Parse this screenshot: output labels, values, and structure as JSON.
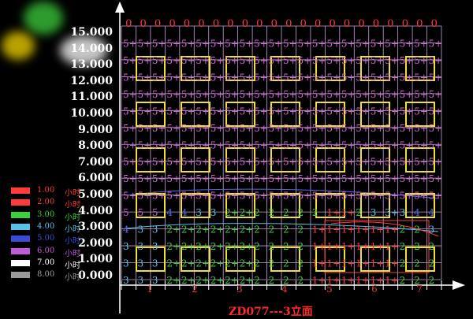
{
  "title": "ZD077---3立面",
  "legend": [
    {
      "value": "1.00",
      "unit": "小时",
      "color": "#ff3b3b"
    },
    {
      "value": "2.00",
      "unit": "小时",
      "color": "#ff3b3b"
    },
    {
      "value": "3.00",
      "unit": "小时",
      "color": "#3bd13b"
    },
    {
      "value": "4.00",
      "unit": "小时",
      "color": "#5bc0e8"
    },
    {
      "value": "5.00",
      "unit": "小时",
      "color": "#3a4bd8"
    },
    {
      "value": "6.00",
      "unit": "小时",
      "color": "#c05ad8"
    },
    {
      "value": "7.00",
      "unit": "小时",
      "color": "#ffffff"
    },
    {
      "value": "8.00",
      "unit": "小时",
      "color": "#9a9a9a"
    }
  ],
  "y_labels": [
    "15.000",
    "14.000",
    "13.000",
    "12.000",
    "11.000",
    "10.000",
    "9.000",
    "8.000",
    "7.000",
    "6.000",
    "5.000",
    "4.000",
    "3.000",
    "2.000",
    "1.000",
    "0.000"
  ],
  "column_numbers": [
    "1",
    "2",
    "3",
    "4",
    "5",
    "6",
    "7"
  ],
  "grid": {
    "cols": 22,
    "rows": [
      {
        "kind": "zero",
        "cells": "0000000000000000000000"
      },
      {
        "kind": "row",
        "cells": [
          "5+",
          "5+",
          "5+",
          "5+",
          "5+",
          "5+",
          "5+",
          "5+",
          "5+",
          "5+",
          "5+",
          "5+",
          "5+",
          "5+",
          "5+",
          "5+",
          "5+",
          "5+",
          "5+",
          "5+",
          "5+",
          "5+"
        ]
      },
      {
        "kind": "row",
        "cells": [
          "5+",
          "5+",
          "5+",
          "5+",
          "5+",
          "5+",
          "5+",
          "5+",
          "5+",
          "5+",
          "5+",
          "5+",
          "5+",
          "5+",
          "5+",
          "5+",
          "5+",
          "5+",
          "5+",
          "5+",
          "5+",
          "5+"
        ]
      },
      {
        "kind": "row",
        "cells": [
          "5+",
          "5+",
          "5+",
          "5+",
          "5+",
          "5+",
          "5+",
          "5+",
          "5+",
          "5+",
          "5+",
          "5+",
          "5+",
          "5+",
          "5+",
          "5+",
          "5+",
          "5+",
          "5+",
          "5+",
          "5+",
          "5+"
        ]
      },
      {
        "kind": "row",
        "cells": [
          "5+",
          "5+",
          "5+",
          "5+",
          "5+",
          "5+",
          "5+",
          "5+",
          "5+",
          "5+",
          "5+",
          "5+",
          "5+",
          "5+",
          "5+",
          "5+",
          "5+",
          "5+",
          "5+",
          "5+",
          "5+",
          "5+"
        ]
      },
      {
        "kind": "row",
        "cells": [
          "5+",
          "5+",
          "5+",
          "5+",
          "5+",
          "5+",
          "5+",
          "5+",
          "5+",
          "5+",
          "5+",
          "5+",
          "5+",
          "5+",
          "5+",
          "5+",
          "5+",
          "5+",
          "5+",
          "5+",
          "5+",
          "5+"
        ]
      },
      {
        "kind": "row",
        "cells": [
          "5+",
          "5+",
          "5+",
          "5+",
          "5+",
          "5+",
          "5+",
          "5+",
          "5+",
          "5+",
          "5+",
          "5+",
          "5+",
          "5+",
          "5+",
          "5+",
          "5+",
          "5+",
          "5+",
          "5+",
          "5+",
          "5+"
        ]
      },
      {
        "kind": "row",
        "cells": [
          "5+",
          "5+",
          "5+",
          "5+",
          "5+",
          "5+",
          "5+",
          "5+",
          "5+",
          "5+",
          "5+",
          "5+",
          "5+",
          "5+",
          "5+",
          "5+",
          "5+",
          "5+",
          "5+",
          "5+",
          "5+",
          "5+"
        ]
      },
      {
        "kind": "row",
        "cells": [
          "5+",
          "5+",
          "5+",
          "5+",
          "5+",
          "5+",
          "5+",
          "5+",
          "5+",
          "5+",
          "5+",
          "5+",
          "5+",
          "5+",
          "5+",
          "5+",
          "5+",
          "5+",
          "5+",
          "5+",
          "5+",
          "5+"
        ]
      },
      {
        "kind": "row",
        "cells": [
          "5+",
          "5+",
          "5+",
          "5+",
          "5+",
          "5+",
          "5+",
          "5+",
          "5+",
          "5+",
          "5+",
          "5+",
          "5+",
          "5+",
          "5+",
          "5+",
          "5+",
          "5+",
          "5+",
          "5+",
          "5+",
          "5+"
        ]
      },
      {
        "kind": "row",
        "cells": [
          "5+",
          "5+",
          "5+",
          "5+",
          "5+",
          "5+",
          "5+",
          "5+",
          "5+",
          "5+",
          "5+",
          "5+",
          "5+",
          "5+",
          "5+",
          "5+",
          "5+",
          "5+",
          "5+",
          "5+",
          "5+",
          "5+"
        ]
      },
      {
        "kind": "row",
        "cells": [
          "5",
          "5",
          "5",
          "4",
          "4",
          "3",
          "3",
          "2+",
          "2+",
          "2",
          "2",
          "2",
          "2",
          "2",
          "1+",
          "1+",
          "2",
          "3",
          "3+",
          "3",
          "4",
          "4"
        ]
      },
      {
        "kind": "row",
        "cells": [
          "4",
          "3",
          "3",
          "2+",
          "2+",
          "2+",
          "2+",
          "2+",
          "2+",
          "2",
          "2",
          "2",
          "2",
          "1+",
          "1+",
          "1+",
          "1+",
          "1+",
          "1+",
          "2",
          "2",
          "3"
        ]
      },
      {
        "kind": "row",
        "cells": [
          "3",
          "3",
          "3",
          "2+",
          "2+",
          "2+",
          "2+",
          "2+",
          "2+",
          "2",
          "2",
          "2",
          "2",
          "1+",
          "1+",
          "1+",
          "1+",
          "1+",
          "1+",
          "2",
          "2",
          "2"
        ]
      },
      {
        "kind": "row",
        "cells": [
          "3",
          "3",
          "3",
          "2+",
          "2+",
          "2+",
          "2+",
          "2+",
          "2+",
          "2",
          "2",
          "2",
          "2",
          "1+",
          "1+",
          "1+",
          "1+",
          "1+",
          "1+",
          "2",
          "2",
          "2"
        ]
      },
      {
        "kind": "row",
        "cells": [
          "3",
          "3",
          "3",
          "2+",
          "2+",
          "2+",
          "2+",
          "2+",
          "2+",
          "2",
          "2",
          "2",
          "2",
          "1+",
          "1+",
          "1+",
          "1+",
          "1+",
          "1+",
          "2",
          "2",
          "2"
        ]
      }
    ]
  },
  "colors": {
    "zero": "#ff3b3b",
    "5+": "#d766d7",
    "5": "#c05ad8",
    "4": "#5a6ae8",
    "3+": "#5bc0e8",
    "3": "#5bc0e8",
    "2+": "#3bd13b",
    "2": "#3bd13b",
    "1+": "#ff3b3b",
    "1": "#ff3b3b",
    "gridline": "#c8a0d8",
    "window": "#f0e030",
    "axis": "#ffffff"
  }
}
